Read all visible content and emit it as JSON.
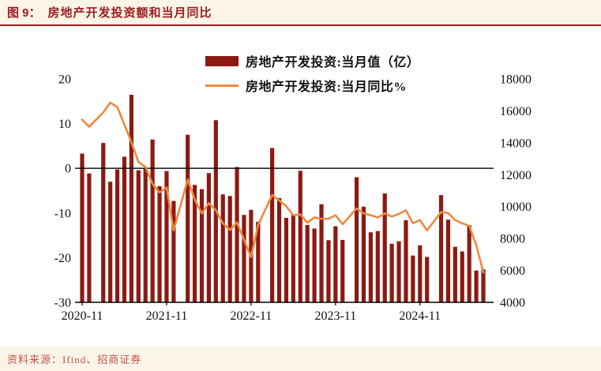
{
  "header": {
    "figure_label": "图 9：",
    "title": "房地产开发投资额和当月同比"
  },
  "footer": {
    "source": "资料来源：Ifind、招商证券"
  },
  "colors": {
    "brand_red": "#9B1B1E",
    "bar": "#8C1A12",
    "line": "#F0883F",
    "strip_bg": "#FBF4E8",
    "axis_text": "#111111",
    "footer_text": "#C05548"
  },
  "chart_data": {
    "type": "bar",
    "subtype": "bar+line combo, dual axis",
    "title": "房地产开发投资额和当月同比",
    "x": [
      "2020-11",
      "2020-12",
      "2021-01",
      "2021-02",
      "2021-03",
      "2021-04",
      "2021-05",
      "2021-06",
      "2021-07",
      "2021-08",
      "2021-09",
      "2021-10",
      "2021-11",
      "2021-12",
      "2022-01",
      "2022-02",
      "2022-03",
      "2022-04",
      "2022-05",
      "2022-06",
      "2022-07",
      "2022-08",
      "2022-09",
      "2022-10",
      "2022-11",
      "2022-12",
      "2023-01",
      "2023-02",
      "2023-03",
      "2023-04",
      "2023-05",
      "2023-06",
      "2023-07",
      "2023-08",
      "2023-09",
      "2023-10",
      "2023-11",
      "2023-12",
      "2024-01",
      "2024-02",
      "2024-03",
      "2024-04",
      "2024-05",
      "2024-06",
      "2024-07",
      "2024-08",
      "2024-09",
      "2024-10",
      "2024-11",
      "2024-12",
      "2025-01",
      "2025-02",
      "2025-03",
      "2025-04",
      "2025-05",
      "2025-06",
      "2025-07",
      "2025-08"
    ],
    "series": [
      {
        "name": "房地产开发投资:当月值（亿）",
        "type": "bar",
        "axis": "right",
        "color": "#8C1A12",
        "values": [
          13323,
          12079,
          null,
          13986,
          11557,
          12331,
          13127,
          17007,
          12275,
          12369,
          14205,
          11280,
          12228,
          10354,
          null,
          14499,
          11358,
          11091,
          12101,
          15415,
          10764,
          10664,
          12479,
          9479,
          9796,
          9041,
          null,
          13669,
          10537,
          9294,
          9496,
          12243,
          8849,
          8627,
          10147,
          7896,
          8766,
          7911,
          null,
          11842,
          9994,
          8391,
          8464,
          10823,
          7669,
          7826,
          9145,
          6931,
          7573,
          6848,
          null,
          10720,
          9183,
          7479,
          7192,
          8827,
          5993,
          6073
        ]
      },
      {
        "name": "房地产开发投资:当月同比%",
        "type": "line",
        "axis": "left",
        "color": "#F0883F",
        "values": [
          10.9,
          9.3,
          null,
          12.5,
          14.7,
          13.7,
          9.8,
          5.9,
          1.4,
          0.3,
          -3.5,
          -5.4,
          -4.3,
          -13.9,
          null,
          -2.5,
          -7.0,
          -10.1,
          -7.8,
          -9.4,
          -12.3,
          -13.8,
          -12.1,
          -16.0,
          -19.9,
          -12.7,
          null,
          -6.0,
          -7.2,
          -8.5,
          -10.5,
          -10.3,
          -12.2,
          -11.0,
          -11.3,
          -11.3,
          -10.5,
          -12.5,
          null,
          -9.0,
          -10.1,
          -10.5,
          -11.0,
          -10.1,
          -10.8,
          -10.2,
          -9.4,
          -12.3,
          -11.6,
          -13.9,
          null,
          -9.8,
          -10.0,
          -11.6,
          -12.3,
          -12.9,
          -17.2,
          -23.3
        ]
      }
    ],
    "left_axis": {
      "ticks": [
        20,
        10,
        0,
        -10,
        -20,
        -30
      ],
      "min": -30,
      "max": 20
    },
    "right_axis": {
      "ticks": [
        18000,
        16000,
        14000,
        12000,
        10000,
        8000,
        6000,
        4000
      ],
      "min": 4000,
      "max": 18000
    },
    "x_ticks": [
      "2020-11",
      "2021-11",
      "2022-11",
      "2023-11",
      "2024-11"
    ],
    "zero_line": true,
    "grid": false,
    "legend_position": "top-center"
  }
}
